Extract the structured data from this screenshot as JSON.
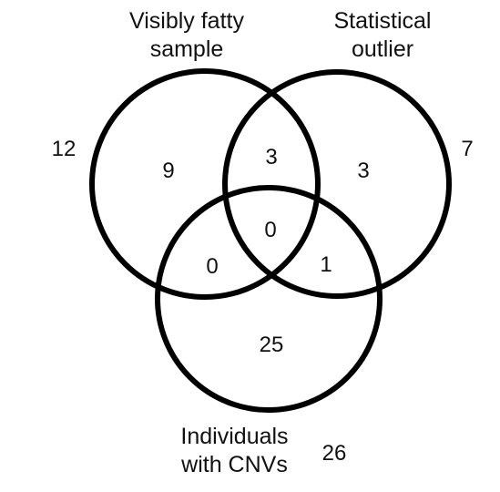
{
  "sets": {
    "fatty": {
      "label": "Visibly fatty\nsample",
      "total": "12"
    },
    "outlier": {
      "label": "Statistical\noutlier",
      "total": "7"
    },
    "cnv": {
      "label": "Individuals\nwith CNVs",
      "total": "26"
    }
  },
  "regions": {
    "fatty_only": "9",
    "fatty_outlier": "3",
    "outlier_only": "3",
    "all_three": "0",
    "fatty_cnv": "0",
    "outlier_cnv": "1",
    "cnv_only": "25"
  },
  "colors": {
    "stroke": "#000000",
    "text": "#111111",
    "background": "#ffffff"
  }
}
